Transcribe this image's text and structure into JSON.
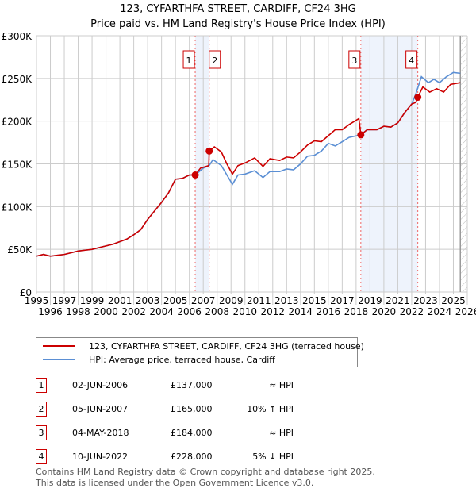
{
  "chart_data": {
    "type": "line",
    "title": "123, CYFARTHFA STREET, CARDIFF, CF24 3HG",
    "subtitle": "Price paid vs. HM Land Registry's House Price Index (HPI)",
    "xlim": [
      1995,
      2026
    ],
    "ylim": [
      0,
      300000
    ],
    "x_ticks": [
      "1995",
      "1996",
      "1997",
      "1998",
      "1999",
      "2000",
      "2001",
      "2002",
      "2003",
      "2004",
      "2005",
      "2006",
      "2007",
      "2008",
      "2009",
      "2010",
      "2011",
      "2012",
      "2013",
      "2014",
      "2015",
      "2016",
      "2017",
      "2018",
      "2019",
      "2020",
      "2021",
      "2022",
      "2023",
      "2024",
      "2025",
      "2026"
    ],
    "y_ticks": [
      {
        "v": 0,
        "l": "£0"
      },
      {
        "v": 50000,
        "l": "£50K"
      },
      {
        "v": 100000,
        "l": "£100K"
      },
      {
        "v": 150000,
        "l": "£150K"
      },
      {
        "v": 200000,
        "l": "£200K"
      },
      {
        "v": 250000,
        "l": "£250K"
      },
      {
        "v": 300000,
        "l": "£300K"
      }
    ],
    "grid": true,
    "series": [
      {
        "name": "123, CYFARTHFA STREET, CARDIFF, CF24 3HG (terraced house)",
        "color": "#cc0000",
        "points": [
          [
            1995,
            42
          ],
          [
            1995.5,
            44
          ],
          [
            1996,
            42
          ],
          [
            1996.5,
            43
          ],
          [
            1997,
            44
          ],
          [
            1997.5,
            46
          ],
          [
            1998,
            48
          ],
          [
            1998.5,
            49
          ],
          [
            1999,
            50
          ],
          [
            1999.5,
            52
          ],
          [
            2000,
            54
          ],
          [
            2000.5,
            56
          ],
          [
            2001,
            59
          ],
          [
            2001.5,
            62
          ],
          [
            2002,
            67
          ],
          [
            2002.5,
            73
          ],
          [
            2003,
            85
          ],
          [
            2003.5,
            95
          ],
          [
            2004,
            105
          ],
          [
            2004.5,
            116
          ],
          [
            2005,
            132
          ],
          [
            2005.5,
            133
          ],
          [
            2006,
            137
          ],
          [
            2006.42,
            137
          ],
          [
            2006.8,
            145
          ],
          [
            2007.4,
            148
          ],
          [
            2007.43,
            165
          ],
          [
            2007.8,
            170
          ],
          [
            2008.3,
            164
          ],
          [
            2008.7,
            150
          ],
          [
            2009.1,
            138
          ],
          [
            2009.5,
            148
          ],
          [
            2010,
            151
          ],
          [
            2010.7,
            157
          ],
          [
            2011.3,
            147
          ],
          [
            2011.8,
            156
          ],
          [
            2012.5,
            154
          ],
          [
            2013,
            158
          ],
          [
            2013.5,
            157
          ],
          [
            2014,
            164
          ],
          [
            2014.5,
            172
          ],
          [
            2015,
            177
          ],
          [
            2015.5,
            176
          ],
          [
            2016,
            183
          ],
          [
            2016.5,
            190
          ],
          [
            2017,
            190
          ],
          [
            2017.5,
            196
          ],
          [
            2018.2,
            203
          ],
          [
            2018.34,
            184
          ],
          [
            2018.8,
            190
          ],
          [
            2019.5,
            190
          ],
          [
            2020,
            194
          ],
          [
            2020.5,
            193
          ],
          [
            2021,
            198
          ],
          [
            2021.5,
            210
          ],
          [
            2022,
            220
          ],
          [
            2022.3,
            222
          ],
          [
            2022.44,
            228
          ],
          [
            2022.8,
            240
          ],
          [
            2023.3,
            234
          ],
          [
            2023.8,
            238
          ],
          [
            2024.3,
            234
          ],
          [
            2024.8,
            243
          ],
          [
            2025.5,
            245
          ]
        ]
      },
      {
        "name": "HPI: Average price, terraced house, Cardiff",
        "color": "#5b8fd4",
        "points": [
          [
            1995,
            42
          ],
          [
            1995.5,
            44
          ],
          [
            1996,
            42
          ],
          [
            1996.5,
            43
          ],
          [
            1997,
            44
          ],
          [
            1997.5,
            46
          ],
          [
            1998,
            48
          ],
          [
            1998.5,
            49
          ],
          [
            1999,
            50
          ],
          [
            1999.5,
            52
          ],
          [
            2000,
            54
          ],
          [
            2000.5,
            56
          ],
          [
            2001,
            59
          ],
          [
            2001.5,
            62
          ],
          [
            2002,
            67
          ],
          [
            2002.5,
            73
          ],
          [
            2003,
            85
          ],
          [
            2003.5,
            95
          ],
          [
            2004,
            105
          ],
          [
            2004.5,
            116
          ],
          [
            2005,
            132
          ],
          [
            2005.5,
            133
          ],
          [
            2006,
            137
          ],
          [
            2006.42,
            137
          ],
          [
            2007,
            145
          ],
          [
            2007.43,
            148
          ],
          [
            2007.7,
            155
          ],
          [
            2008.3,
            148
          ],
          [
            2009.1,
            126
          ],
          [
            2009.5,
            137
          ],
          [
            2010,
            138
          ],
          [
            2010.7,
            142
          ],
          [
            2011.3,
            134
          ],
          [
            2011.8,
            141
          ],
          [
            2012.5,
            141
          ],
          [
            2013,
            144
          ],
          [
            2013.5,
            143
          ],
          [
            2014,
            150
          ],
          [
            2014.5,
            159
          ],
          [
            2015,
            160
          ],
          [
            2015.5,
            165
          ],
          [
            2016,
            174
          ],
          [
            2016.5,
            171
          ],
          [
            2017,
            176
          ],
          [
            2017.5,
            181
          ],
          [
            2018.34,
            184
          ],
          [
            2018.8,
            190
          ],
          [
            2019.5,
            190
          ],
          [
            2020,
            194
          ],
          [
            2020.5,
            193
          ],
          [
            2021,
            198
          ],
          [
            2021.5,
            210
          ],
          [
            2022,
            220
          ],
          [
            2022.3,
            232
          ],
          [
            2022.7,
            252
          ],
          [
            2023.2,
            245
          ],
          [
            2023.6,
            249
          ],
          [
            2024,
            245
          ],
          [
            2024.5,
            252
          ],
          [
            2025,
            257
          ],
          [
            2025.5,
            256
          ]
        ]
      }
    ],
    "sales": [
      {
        "n": "1",
        "x": 2006.42,
        "y": 137000
      },
      {
        "n": "2",
        "x": 2007.43,
        "y": 165000
      },
      {
        "n": "3",
        "x": 2018.34,
        "y": 184000
      },
      {
        "n": "4",
        "x": 2022.44,
        "y": 228000
      }
    ],
    "shaded_ranges": [
      [
        2006.42,
        2007.43
      ],
      [
        2018.34,
        2022.44
      ]
    ],
    "future_from": 2025.5
  },
  "legend": {
    "property": "123, CYFARTHFA STREET, CARDIFF, CF24 3HG (terraced house)",
    "hpi": "HPI: Average price, terraced house, Cardiff"
  },
  "transactions": [
    {
      "n": "1",
      "date": "02-JUN-2006",
      "price": "£137,000",
      "rel": "≈ HPI"
    },
    {
      "n": "2",
      "date": "05-JUN-2007",
      "price": "£165,000",
      "rel": "10% ↑ HPI"
    },
    {
      "n": "3",
      "date": "04-MAY-2018",
      "price": "£184,000",
      "rel": "≈ HPI"
    },
    {
      "n": "4",
      "date": "10-JUN-2022",
      "price": "£228,000",
      "rel": "5% ↓ HPI"
    }
  ],
  "footer": {
    "line1": "Contains HM Land Registry data © Crown copyright and database right 2025.",
    "line2": "This data is licensed under the Open Government Licence v3.0."
  }
}
